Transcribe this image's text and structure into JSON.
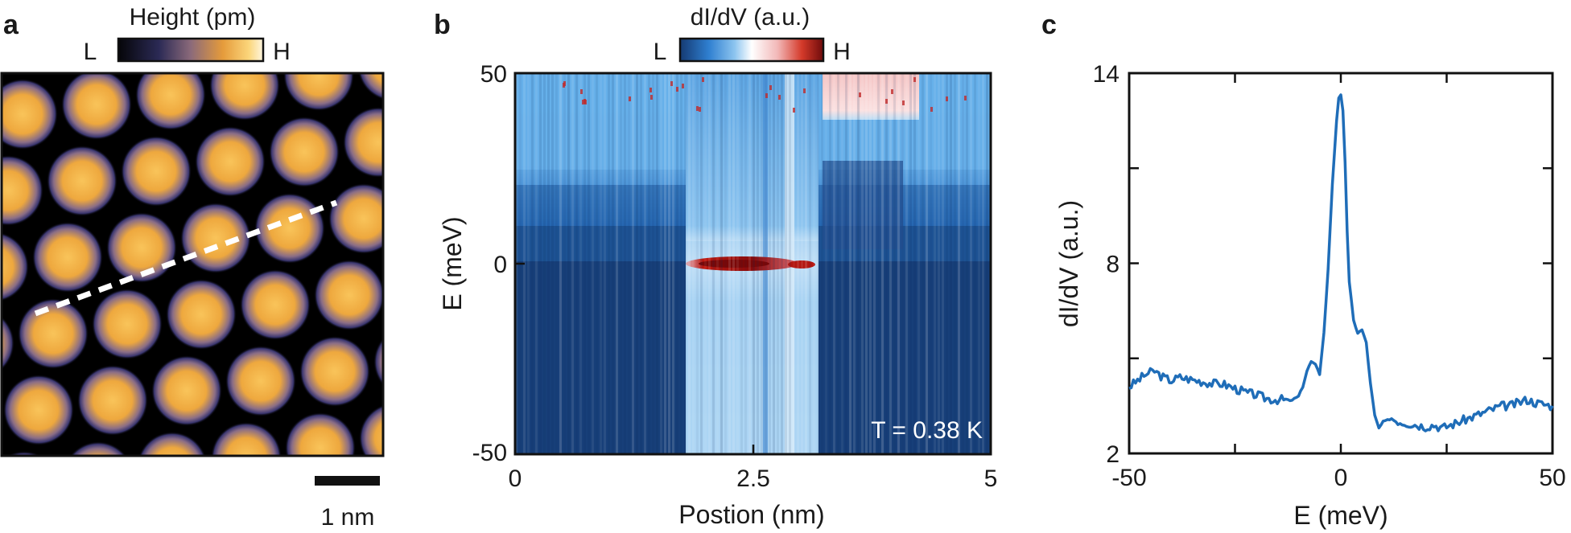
{
  "panels": {
    "a": {
      "label": "a",
      "colorbar": {
        "title": "Height (pm)",
        "low": "L",
        "high": "H"
      },
      "scalebar": {
        "label": "1 nm"
      }
    },
    "b": {
      "label": "b",
      "colorbar": {
        "title": "dI/dV (a.u.)",
        "low": "L",
        "high": "H"
      },
      "xlabel": "Postion (nm)",
      "ylabel": "E (meV)",
      "xticks": [
        "0",
        "2.5",
        "5"
      ],
      "yticks": [
        "50",
        "0",
        "-50"
      ],
      "annotation": "T = 0.38 K"
    },
    "c": {
      "label": "c"
    }
  },
  "colors": {
    "topo_low": "#000000",
    "topo_mid": "#4a3f6b",
    "topo_high": "#f5b544",
    "map_low": "#173a6e",
    "map_mid": "#ffffff",
    "map_high": "#b3150f",
    "line": "#1f6db8",
    "linecut": "#ffffff"
  },
  "chart_data": {
    "type": "line",
    "title": "",
    "xlabel": "E (meV)",
    "ylabel": "dI/dV (a.u.)",
    "xlim": [
      -50,
      50
    ],
    "ylim": [
      2,
      14
    ],
    "xticks": [
      "-50",
      "0",
      "50"
    ],
    "yticks": [
      "2",
      "8",
      "14"
    ],
    "series": [
      {
        "name": "dI/dV",
        "x": [
          -50,
          -48,
          -46,
          -44,
          -42,
          -40,
          -38,
          -36,
          -34,
          -32,
          -30,
          -28,
          -26,
          -24,
          -22,
          -20,
          -18,
          -16,
          -14,
          -12,
          -10,
          -9,
          -8,
          -7,
          -6,
          -5,
          -4,
          -3,
          -2,
          -1,
          -0.5,
          0,
          0.5,
          1,
          1.5,
          2,
          3,
          4,
          5,
          6,
          7,
          8,
          9,
          10,
          12,
          14,
          16,
          18,
          20,
          22,
          24,
          26,
          28,
          30,
          32,
          34,
          36,
          38,
          40,
          42,
          44,
          46,
          48,
          50
        ],
        "y": [
          4.1,
          4.3,
          4.5,
          4.6,
          4.4,
          4.3,
          4.4,
          4.35,
          4.3,
          4.25,
          4.2,
          4.2,
          4.1,
          4.0,
          3.9,
          3.85,
          3.75,
          3.7,
          3.7,
          3.65,
          3.8,
          4.1,
          4.6,
          4.9,
          4.8,
          4.5,
          5.8,
          7.8,
          10.5,
          12.5,
          13.2,
          13.3,
          12.8,
          11.2,
          9.0,
          7.4,
          6.2,
          5.8,
          5.9,
          5.5,
          4.2,
          3.2,
          2.8,
          3.0,
          3.1,
          3.0,
          2.95,
          2.9,
          2.85,
          2.9,
          2.8,
          2.9,
          3.0,
          3.1,
          3.2,
          3.3,
          3.4,
          3.5,
          3.5,
          3.6,
          3.7,
          3.6,
          3.55,
          3.5
        ]
      }
    ]
  }
}
